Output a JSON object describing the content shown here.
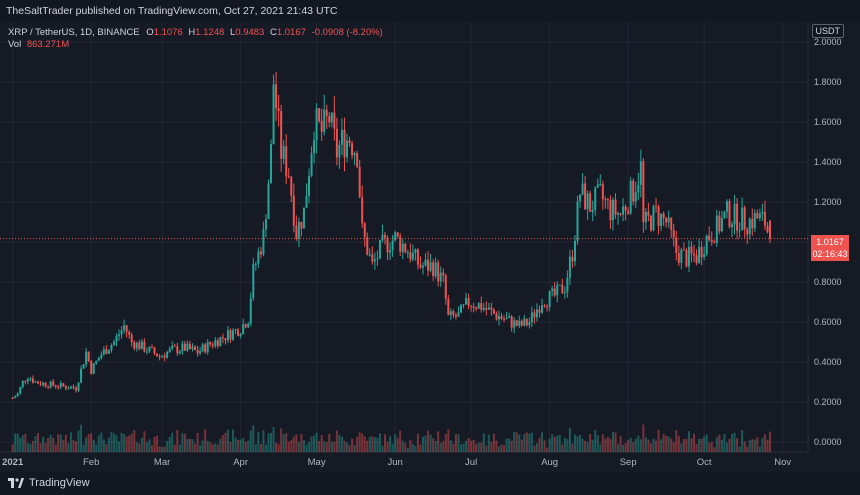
{
  "header": {
    "publisher_line": "TheSaltTrader published on TradingView.com, Oct 27, 2021 21:43 UTC"
  },
  "legend": {
    "symbol": "XRP / TetherUS, 1D, BINANCE",
    "o_label": "O",
    "o_value": "1.1076",
    "h_label": "H",
    "h_value": "1.1248",
    "l_label": "L",
    "l_value": "0.9483",
    "c_label": "C",
    "c_value": "1.0167",
    "change": "-0.0908 (-8.20%)",
    "vol_label": "Vol",
    "vol_value": "863.271M"
  },
  "currency_badge": "USDT",
  "last_price": {
    "price": "1.0167",
    "countdown": "02:16:43"
  },
  "footer": {
    "brand": "TradingView"
  },
  "colors": {
    "up": "#26a69a",
    "down": "#ef5350",
    "background": "#161a25",
    "grid": "#232632",
    "text": "#b2b5be"
  },
  "chart_data": {
    "type": "candlestick",
    "y_axis": {
      "min": 0,
      "max": 2.1,
      "ticks": [
        "2.0000",
        "1.8000",
        "1.6000",
        "1.4000",
        "1.2000",
        "1.0000",
        "0.8000",
        "0.6000",
        "0.4000",
        "0.2000",
        "0.0000"
      ],
      "tick_values": [
        2.0,
        1.8,
        1.6,
        1.4,
        1.2,
        1.0,
        0.8,
        0.6,
        0.4,
        0.2,
        0.0
      ]
    },
    "x_axis": {
      "labels": [
        "2021",
        "Feb",
        "Mar",
        "Apr",
        "May",
        "Jun",
        "Jul",
        "Aug",
        "Sep",
        "Oct",
        "Nov"
      ]
    },
    "trend_path": [
      [
        "2021-01-01",
        0.22
      ],
      [
        "2021-01-03",
        0.24
      ],
      [
        "2021-01-05",
        0.3
      ],
      [
        "2021-01-07",
        0.33
      ],
      [
        "2021-01-10",
        0.3
      ],
      [
        "2021-01-14",
        0.29
      ],
      [
        "2021-01-20",
        0.28
      ],
      [
        "2021-01-26",
        0.27
      ],
      [
        "2021-01-30",
        0.45
      ],
      [
        "2021-02-01",
        0.36
      ],
      [
        "2021-02-05",
        0.44
      ],
      [
        "2021-02-10",
        0.5
      ],
      [
        "2021-02-14",
        0.58
      ],
      [
        "2021-02-17",
        0.5
      ],
      [
        "2021-02-22",
        0.47
      ],
      [
        "2021-02-28",
        0.43
      ],
      [
        "2021-03-05",
        0.46
      ],
      [
        "2021-03-10",
        0.47
      ],
      [
        "2021-03-15",
        0.45
      ],
      [
        "2021-03-20",
        0.49
      ],
      [
        "2021-03-26",
        0.53
      ],
      [
        "2021-04-01",
        0.57
      ],
      [
        "2021-04-04",
        0.62
      ],
      [
        "2021-04-06",
        0.85
      ],
      [
        "2021-04-10",
        1.03
      ],
      [
        "2021-04-13",
        1.45
      ],
      [
        "2021-04-14",
        1.8
      ],
      [
        "2021-04-17",
        1.45
      ],
      [
        "2021-04-20",
        1.35
      ],
      [
        "2021-04-23",
        1.05
      ],
      [
        "2021-04-26",
        1.15
      ],
      [
        "2021-04-30",
        1.6
      ],
      [
        "2021-05-03",
        1.55
      ],
      [
        "2021-05-06",
        1.62
      ],
      [
        "2021-05-09",
        1.45
      ],
      [
        "2021-05-11",
        1.5
      ],
      [
        "2021-05-14",
        1.52
      ],
      [
        "2021-05-17",
        1.45
      ],
      [
        "2021-05-19",
        1.05
      ],
      [
        "2021-05-23",
        0.88
      ],
      [
        "2021-05-27",
        0.98
      ],
      [
        "2021-06-01",
        1.02
      ],
      [
        "2021-06-06",
        0.96
      ],
      [
        "2021-06-11",
        0.88
      ],
      [
        "2021-06-16",
        0.88
      ],
      [
        "2021-06-20",
        0.8
      ],
      [
        "2021-06-22",
        0.62
      ],
      [
        "2021-06-26",
        0.63
      ],
      [
        "2021-06-30",
        0.7
      ],
      [
        "2021-07-05",
        0.68
      ],
      [
        "2021-07-10",
        0.64
      ],
      [
        "2021-07-15",
        0.61
      ],
      [
        "2021-07-20",
        0.58
      ],
      [
        "2021-07-24",
        0.6
      ],
      [
        "2021-07-29",
        0.71
      ],
      [
        "2021-08-03",
        0.73
      ],
      [
        "2021-08-07",
        0.78
      ],
      [
        "2021-08-10",
        0.95
      ],
      [
        "2021-08-13",
        1.25
      ],
      [
        "2021-08-17",
        1.18
      ],
      [
        "2021-08-21",
        1.23
      ],
      [
        "2021-08-25",
        1.16
      ],
      [
        "2021-08-29",
        1.14
      ],
      [
        "2021-09-03",
        1.26
      ],
      [
        "2021-09-06",
        1.37
      ],
      [
        "2021-09-07",
        1.08
      ],
      [
        "2021-09-12",
        1.14
      ],
      [
        "2021-09-16",
        1.1
      ],
      [
        "2021-09-20",
        0.95
      ],
      [
        "2021-09-24",
        0.92
      ],
      [
        "2021-09-28",
        0.93
      ],
      [
        "2021-10-02",
        1.02
      ],
      [
        "2021-10-06",
        1.07
      ],
      [
        "2021-10-10",
        1.14
      ],
      [
        "2021-10-14",
        1.12
      ],
      [
        "2021-10-18",
        1.1
      ],
      [
        "2021-10-22",
        1.12
      ],
      [
        "2021-10-25",
        1.1
      ],
      [
        "2021-10-27",
        1.0167
      ]
    ],
    "current_price": 1.0167
  }
}
